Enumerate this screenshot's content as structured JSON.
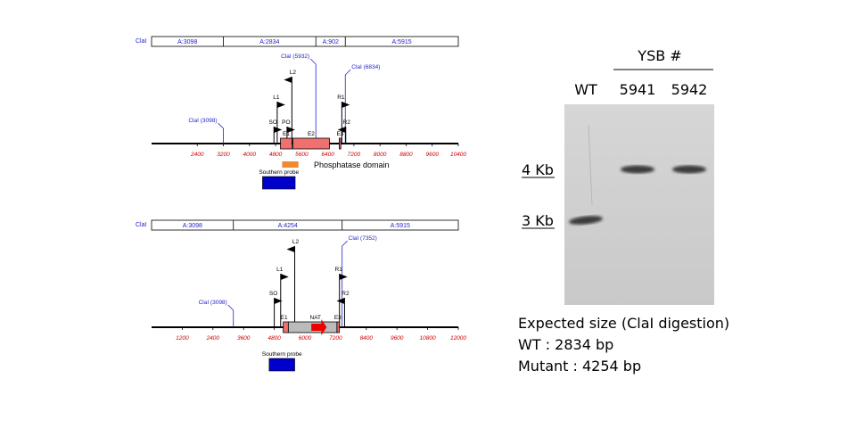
{
  "colors": {
    "axis": "#000000",
    "tick_label": "#cc0000",
    "label_blue": "#2222cc",
    "exon_fill": "#f07070",
    "probe_fill": "#0000cc",
    "domain_fill": "#f08a30",
    "nat_fill": "#bbbbbb",
    "arrow_red": "#ee0000",
    "gel_bg": "#cfcfcf",
    "band": "#3a3a3a"
  },
  "wt_map": {
    "segment_row": {
      "prefix": "ClaI",
      "segments": [
        {
          "label": "A:3098",
          "lo": 1000,
          "hi": 3200
        },
        {
          "label": "A:2834",
          "lo": 3200,
          "hi": 6034
        },
        {
          "label": "A:902",
          "lo": 6034,
          "hi": 6936
        },
        {
          "label": "A:5915",
          "lo": 6936,
          "hi": 10400
        }
      ]
    },
    "axis": {
      "min": 1000,
      "max": 10400,
      "ticks": [
        2400,
        3200,
        4000,
        4800,
        5600,
        6400,
        7200,
        8000,
        8800,
        9600,
        10400
      ]
    },
    "cla_sites": [
      {
        "label": "ClaI (3098)",
        "pos": 3200
      },
      {
        "label": "ClaI (5932)",
        "pos": 6034
      },
      {
        "label": "ClaI (6834)",
        "pos": 6936
      }
    ],
    "exons": [
      {
        "label": "E1",
        "lo": 4950,
        "hi": 5300
      },
      {
        "label": "E2",
        "lo": 5330,
        "hi": 6450
      },
      {
        "label": "E3",
        "lo": 6750,
        "hi": 6800
      }
    ],
    "primers": [
      {
        "label": "SO",
        "pos": 4750,
        "dir": "right",
        "level": 3
      },
      {
        "label": "PO",
        "pos": 5150,
        "dir": "right",
        "level": 3
      },
      {
        "label": "L1",
        "pos": 4850,
        "dir": "right",
        "level": 2
      },
      {
        "label": "L2",
        "pos": 5300,
        "dir": "left",
        "level": 1
      },
      {
        "label": "R1",
        "pos": 6830,
        "dir": "right",
        "level": 2
      },
      {
        "label": "R2",
        "pos": 6950,
        "dir": "left",
        "level": 3
      }
    ],
    "domain": {
      "label": "Phosphatase domain",
      "lo": 5000,
      "hi": 5500
    },
    "probe": {
      "label": "Southern probe",
      "lo": 4400,
      "hi": 5400
    }
  },
  "mut_map": {
    "segment_row": {
      "prefix": "ClaI",
      "segments": [
        {
          "label": "A:3098",
          "lo": 0,
          "hi": 3200
        },
        {
          "label": "A:4254",
          "lo": 3200,
          "hi": 7454
        },
        {
          "label": "A:5915",
          "lo": 7454,
          "hi": 12000
        }
      ]
    },
    "axis": {
      "min": 0,
      "max": 12000,
      "ticks": [
        1200,
        2400,
        3600,
        4800,
        6000,
        7200,
        8400,
        9600,
        10800,
        12000
      ]
    },
    "cla_sites": [
      {
        "label": "ClaI (3098)",
        "pos": 3200
      },
      {
        "label": "ClaI (7352)",
        "pos": 7454
      }
    ],
    "exons": [
      {
        "label": "E1",
        "lo": 5150,
        "hi": 5350
      },
      {
        "label": "E3",
        "lo": 7250,
        "hi": 7350
      }
    ],
    "nat": {
      "label": "NAT",
      "lo": 5350,
      "hi": 7250,
      "arrow_lo": 6250,
      "arrow_hi": 6850
    },
    "primers": [
      {
        "label": "SO",
        "pos": 4800,
        "dir": "right",
        "level": 3
      },
      {
        "label": "L1",
        "pos": 5050,
        "dir": "right",
        "level": 2
      },
      {
        "label": "L2",
        "pos": 5600,
        "dir": "left",
        "level": 1
      },
      {
        "label": "R1",
        "pos": 7350,
        "dir": "right",
        "level": 2
      },
      {
        "label": "R2",
        "pos": 7550,
        "dir": "left",
        "level": 3
      }
    ],
    "probe": {
      "label": "Southern probe",
      "lo": 4600,
      "hi": 5600
    }
  },
  "gel": {
    "group_label": "YSB #",
    "lanes": [
      {
        "label": "WT",
        "band_kb": 2.834
      },
      {
        "label": "5941",
        "band_kb": 4.254
      },
      {
        "label": "5942",
        "band_kb": 4.254
      }
    ],
    "markers": [
      {
        "label": "4 Kb",
        "kb": 4.254
      },
      {
        "label": "3 Kb",
        "kb": 2.834
      }
    ]
  },
  "notes": {
    "title": "Expected size (ClaI digestion)",
    "lines": [
      "WT : 2834 bp",
      "Mutant : 4254 bp"
    ]
  }
}
